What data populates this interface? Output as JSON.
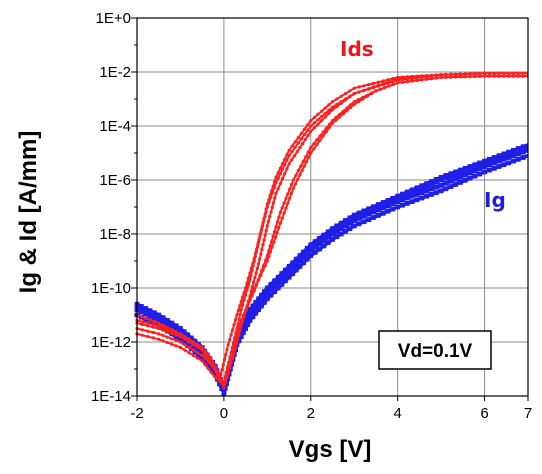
{
  "chart_data": {
    "type": "line",
    "title": "",
    "xlabel": "Vgs [V]",
    "ylabel": "Ig & Id [A/mm]",
    "y_scale": "log",
    "xlim": [
      -2,
      7
    ],
    "ylim_exponent": [
      -14,
      0
    ],
    "x_ticks": [
      {
        "value": -2,
        "label": "-2"
      },
      {
        "value": 0,
        "label": "0"
      },
      {
        "value": 2,
        "label": "2"
      },
      {
        "value": 4,
        "label": "4"
      },
      {
        "value": 6,
        "label": "6"
      },
      {
        "value": 7,
        "label": "7"
      }
    ],
    "y_ticks": [
      {
        "exp": 0,
        "label": "1E+0"
      },
      {
        "exp": -2,
        "label": "1E-2"
      },
      {
        "exp": -4,
        "label": "1E-4"
      },
      {
        "exp": -6,
        "label": "1E-6"
      },
      {
        "exp": -8,
        "label": "1E-8"
      },
      {
        "exp": -10,
        "label": "1E-10"
      },
      {
        "exp": -12,
        "label": "1E-12"
      },
      {
        "exp": -14,
        "label": "1E-14"
      }
    ],
    "grid": true,
    "annotations": [
      {
        "text": "Ids",
        "color": "#e8191e"
      },
      {
        "text": "Ig",
        "color": "#1f1fd6"
      },
      {
        "text": "Vd=0.1V",
        "boxed": true
      }
    ],
    "series": [
      {
        "group": "Ids",
        "color": "#ff2020",
        "x": [
          -2,
          -1.5,
          -1,
          -0.5,
          -0.3,
          -0.1,
          0,
          0.2,
          0.4,
          0.6,
          0.8,
          1,
          1.2,
          1.5,
          2,
          2.5,
          3,
          4,
          5,
          6,
          7
        ],
        "y": [
          -11.3,
          -11.5,
          -11.8,
          -12.3,
          -12.8,
          -13.3,
          -13.5,
          -12.2,
          -10.8,
          -9.7,
          -8.3,
          -6.9,
          -5.9,
          -4.9,
          -3.8,
          -3.1,
          -2.6,
          -2.2,
          -2.1,
          -2.05,
          -2.05
        ]
      },
      {
        "group": "Ids",
        "color": "#ff2020",
        "x": [
          -2,
          -1.5,
          -1,
          -0.5,
          -0.2,
          0,
          0.2,
          0.4,
          0.6,
          0.8,
          1,
          1.2,
          1.5,
          2,
          2.5,
          3,
          4,
          5,
          6,
          7
        ],
        "y": [
          -11.7,
          -11.9,
          -12.2,
          -12.7,
          -13.3,
          -13.6,
          -12.6,
          -11.4,
          -10.3,
          -9.1,
          -7.7,
          -6.5,
          -5.4,
          -4.2,
          -3.4,
          -2.8,
          -2.25,
          -2.1,
          -2.05,
          -2.05
        ]
      },
      {
        "group": "Ids",
        "color": "#ff2020",
        "x": [
          -2,
          -1.5,
          -1,
          -0.5,
          -0.2,
          0,
          0.2,
          0.4,
          0.7,
          1,
          1.3,
          1.6,
          2,
          2.5,
          3,
          3.5,
          4,
          5,
          6,
          7
        ],
        "y": [
          -11.0,
          -11.3,
          -11.7,
          -12.2,
          -12.9,
          -13.6,
          -12.3,
          -11.2,
          -10.1,
          -8.8,
          -7.2,
          -6.0,
          -4.8,
          -3.8,
          -3.1,
          -2.7,
          -2.4,
          -2.2,
          -2.15,
          -2.15
        ]
      },
      {
        "group": "Ids",
        "color": "#ff2020",
        "x": [
          -2,
          -1.5,
          -1,
          -0.5,
          -0.2,
          0,
          0.2,
          0.4,
          0.6,
          0.8,
          1,
          1.3,
          1.6,
          2,
          2.5,
          3,
          3.5,
          4,
          5,
          6,
          7
        ],
        "y": [
          -11.5,
          -11.7,
          -12.0,
          -12.5,
          -13.0,
          -13.7,
          -12.6,
          -11.3,
          -10.4,
          -9.7,
          -9.0,
          -7.6,
          -6.3,
          -5.0,
          -3.9,
          -3.2,
          -2.7,
          -2.4,
          -2.2,
          -2.15,
          -2.15
        ]
      },
      {
        "group": "Ids",
        "color": "#ff2020",
        "x": [
          -2,
          -1.5,
          -1,
          -0.5,
          -0.3,
          -0.1,
          0.1,
          0.3,
          0.5,
          0.7,
          1,
          1.2,
          1.5,
          2,
          2.5,
          3,
          4,
          5,
          6,
          7
        ],
        "y": [
          -11.2,
          -11.4,
          -11.7,
          -12.2,
          -12.6,
          -13.4,
          -12.1,
          -11.0,
          -10.0,
          -8.9,
          -7.0,
          -6.1,
          -5.1,
          -4.0,
          -3.3,
          -2.8,
          -2.3,
          -2.1,
          -2.05,
          -2.05
        ]
      },
      {
        "group": "Ig",
        "color": "#1f1fe8",
        "x": [
          -2,
          -1.5,
          -1,
          -0.5,
          -0.2,
          0,
          0.3,
          0.6,
          1,
          1.5,
          2,
          2.5,
          3,
          4,
          5,
          6,
          7
        ],
        "y": [
          -10.6,
          -11.0,
          -11.5,
          -12.2,
          -12.9,
          -13.7,
          -11.7,
          -10.8,
          -10.0,
          -9.2,
          -8.4,
          -7.8,
          -7.3,
          -6.6,
          -5.9,
          -5.3,
          -4.7
        ]
      },
      {
        "group": "Ig",
        "color": "#1f1fe8",
        "x": [
          -2,
          -1.5,
          -1,
          -0.5,
          -0.2,
          0,
          0.3,
          0.6,
          1,
          1.5,
          2,
          2.5,
          3,
          4,
          5,
          6,
          7
        ],
        "y": [
          -10.8,
          -11.2,
          -11.7,
          -12.4,
          -13.0,
          -13.8,
          -11.9,
          -11.0,
          -10.2,
          -9.4,
          -8.6,
          -8.0,
          -7.5,
          -6.8,
          -6.2,
          -5.5,
          -4.9
        ]
      },
      {
        "group": "Ig",
        "color": "#1f1fe8",
        "x": [
          -2,
          -1.5,
          -1,
          -0.5,
          -0.2,
          0,
          0.3,
          0.6,
          1,
          1.5,
          2,
          2.5,
          3,
          4,
          5,
          6,
          7
        ],
        "y": [
          -11.0,
          -11.4,
          -11.9,
          -12.6,
          -13.2,
          -13.9,
          -12.1,
          -11.2,
          -10.4,
          -9.6,
          -8.8,
          -8.2,
          -7.7,
          -7.0,
          -6.4,
          -5.7,
          -5.1
        ]
      },
      {
        "group": "Ig",
        "color": "#1f1fe8",
        "x": [
          -2,
          -1.5,
          -1,
          -0.5,
          -0.2,
          0,
          0.3,
          0.6,
          1,
          1.5,
          2,
          2.5,
          3,
          4,
          5,
          6,
          7
        ],
        "y": [
          -10.7,
          -11.1,
          -11.6,
          -12.3,
          -12.9,
          -13.8,
          -11.8,
          -10.9,
          -10.1,
          -9.3,
          -8.5,
          -7.9,
          -7.4,
          -6.7,
          -6.0,
          -5.4,
          -4.8
        ]
      }
    ]
  }
}
